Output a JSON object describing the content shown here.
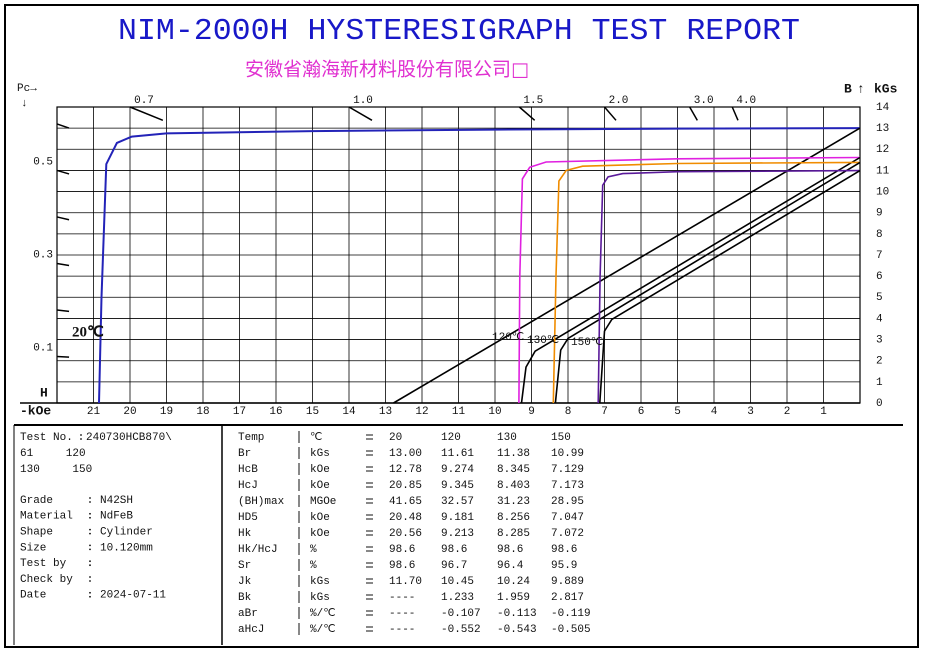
{
  "header": {
    "title": "NIM-2000H HYSTERESIGRAPH TEST REPORT",
    "subtitle": "安徽省瀚海新材料股份有限公司□"
  },
  "chart_data": {
    "type": "line",
    "pc_label": "Pc→",
    "pc_arrow": "↓",
    "y_label": "B",
    "y_arrow": "↑",
    "y_unit": "kGs",
    "x_label": "H",
    "x_unit": "-kOe",
    "xlim": [
      22,
      0
    ],
    "xticks": [
      1,
      2,
      3,
      4,
      5,
      6,
      7,
      8,
      9,
      10,
      11,
      12,
      13,
      14,
      15,
      16,
      17,
      18,
      19,
      20,
      21
    ],
    "ylim": [
      0,
      14
    ],
    "yticks": [
      0,
      1,
      2,
      3,
      4,
      5,
      6,
      7,
      8,
      9,
      10,
      11,
      12,
      13,
      14
    ],
    "grid": true,
    "pc_ticks_left": [
      0.1,
      0.3,
      0.5
    ],
    "pc_minor_ticks_left": [
      0.2,
      0.4,
      0.6
    ],
    "pc_ticks_top": [
      0.7,
      {
        "value": 1,
        "label": "1.0"
      },
      1.5,
      {
        "value": 2,
        "label": "2.0"
      },
      {
        "value": 3,
        "label": "3.0"
      },
      {
        "value": 4,
        "label": "4.0"
      }
    ],
    "series": [
      {
        "color": "#2323b8",
        "x": [
          0,
          5,
          10,
          15,
          19,
          19.95,
          20.36,
          20.65,
          20.78,
          20.85
        ],
        "values": [
          13.0,
          12.98,
          12.93,
          12.86,
          12.75,
          12.6,
          12.3,
          11.3,
          5,
          0
        ]
      },
      {
        "color": "#000000",
        "x": [
          0,
          12.78
        ],
        "values": [
          13.0,
          0
        ]
      },
      {
        "color": "#e020e0",
        "x": [
          0,
          5,
          8.6,
          9.05,
          9.25,
          9.32,
          9.345
        ],
        "values": [
          11.61,
          11.55,
          11.4,
          11.15,
          10.6,
          6,
          0
        ]
      },
      {
        "color": "#000000",
        "x": [
          0,
          8.9,
          9.15,
          9.274
        ],
        "values": [
          11.61,
          2.45,
          1.7,
          0
        ]
      },
      {
        "color": "#f08c00",
        "x": [
          0,
          5,
          7.6,
          8.05,
          8.25,
          8.33,
          8.403
        ],
        "values": [
          11.38,
          11.33,
          11.2,
          11.0,
          10.5,
          6,
          0
        ]
      },
      {
        "color": "#000000",
        "x": [
          0,
          8.0,
          8.2,
          8.345
        ],
        "values": [
          11.38,
          3.05,
          2.5,
          0
        ]
      },
      {
        "color": "#5a1a9a",
        "x": [
          0,
          5,
          6.5,
          6.9,
          7.05,
          7.12,
          7.173
        ],
        "values": [
          10.99,
          10.94,
          10.85,
          10.7,
          10.3,
          6,
          0
        ]
      },
      {
        "color": "#000000",
        "x": [
          0,
          6.8,
          7.0,
          7.129
        ],
        "values": [
          10.99,
          3.95,
          3.4,
          0
        ]
      }
    ],
    "annotations": [
      "20℃",
      "120℃",
      "130℃",
      "150℃"
    ]
  },
  "info": {
    "test_no": {
      "label": "Test No.",
      "lines": [
        "240730HCB870\\",
        "61 120",
        "130 150"
      ]
    },
    "fields": [
      {
        "label": "Grade",
        "value": "N42SH"
      },
      {
        "label": "Material",
        "value": "NdFeB"
      },
      {
        "label": "Shape",
        "value": "Cylinder"
      },
      {
        "label": "Size",
        "value": "10.120mm"
      },
      {
        "label": "Test by"
      },
      {
        "label": "Check by"
      },
      {
        "label": "Date",
        "value": "2024-07-11"
      }
    ]
  },
  "table": {
    "rows": [
      [
        "Temp",
        "℃",
        "20",
        "120",
        "130",
        "150"
      ],
      [
        "Br",
        "kGs",
        "13.00",
        "11.61",
        "11.38",
        "10.99"
      ],
      [
        "HcB",
        "kOe",
        "12.78",
        "9.274",
        "8.345",
        "7.129"
      ],
      [
        "HcJ",
        "kOe",
        "20.85",
        "9.345",
        "8.403",
        "7.173"
      ],
      [
        "(BH)max",
        "MGOe",
        "41.65",
        "32.57",
        "31.23",
        "28.95"
      ],
      [
        "HD5",
        "kOe",
        "20.48",
        "9.181",
        "8.256",
        "7.047"
      ],
      [
        "Hk",
        "kOe",
        "20.56",
        "9.213",
        "8.285",
        "7.072"
      ],
      [
        "Hk/HcJ",
        "%",
        "98.6",
        "98.6",
        "98.6",
        "98.6"
      ],
      [
        "Sr",
        "%",
        "98.6",
        "96.7",
        "96.4",
        "95.9"
      ],
      [
        "Jk",
        "kGs",
        "11.70",
        "10.45",
        "10.24",
        "9.889"
      ],
      [
        "Bk",
        "kGs",
        "----",
        "1.233",
        "1.959",
        "2.817"
      ],
      [
        "aBr",
        "%/℃",
        "----",
        "-0.107",
        "-0.113",
        "-0.119"
      ],
      [
        "aHcJ",
        "%/℃",
        "----",
        "-0.552",
        "-0.543",
        "-0.505"
      ]
    ]
  }
}
